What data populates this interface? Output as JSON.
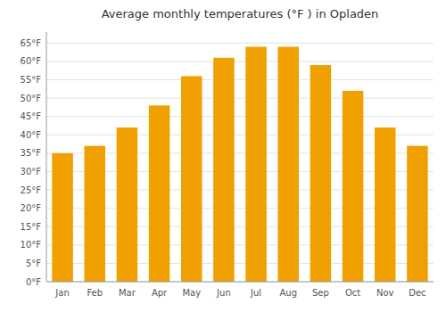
{
  "chart_data": {
    "type": "bar",
    "title": "Average monthly temperatures (°F ) in Opladen",
    "categories": [
      "Jan",
      "Feb",
      "Mar",
      "Apr",
      "May",
      "Jun",
      "Jul",
      "Aug",
      "Sep",
      "Oct",
      "Nov",
      "Dec"
    ],
    "values": [
      35,
      37,
      42,
      48,
      56,
      61,
      64,
      64,
      59,
      52,
      42,
      37
    ],
    "color": "#F0A000",
    "ylim": [
      0,
      68
    ],
    "yticks": [
      {
        "value": 0,
        "label": "0°F"
      },
      {
        "value": 5,
        "label": "5°F"
      },
      {
        "value": 10,
        "label": "10°F"
      },
      {
        "value": 15,
        "label": "15°F"
      },
      {
        "value": 20,
        "label": "20°F"
      },
      {
        "value": 25,
        "label": "25°F"
      },
      {
        "value": 30,
        "label": "30°F"
      },
      {
        "value": 35,
        "label": "35°F"
      },
      {
        "value": 40,
        "label": "40°F"
      },
      {
        "value": 45,
        "label": "45°F"
      },
      {
        "value": 50,
        "label": "50°F"
      },
      {
        "value": 55,
        "label": "55°F"
      },
      {
        "value": 60,
        "label": "60°F"
      },
      {
        "value": 65,
        "label": "65°F"
      }
    ],
    "grid": true
  }
}
